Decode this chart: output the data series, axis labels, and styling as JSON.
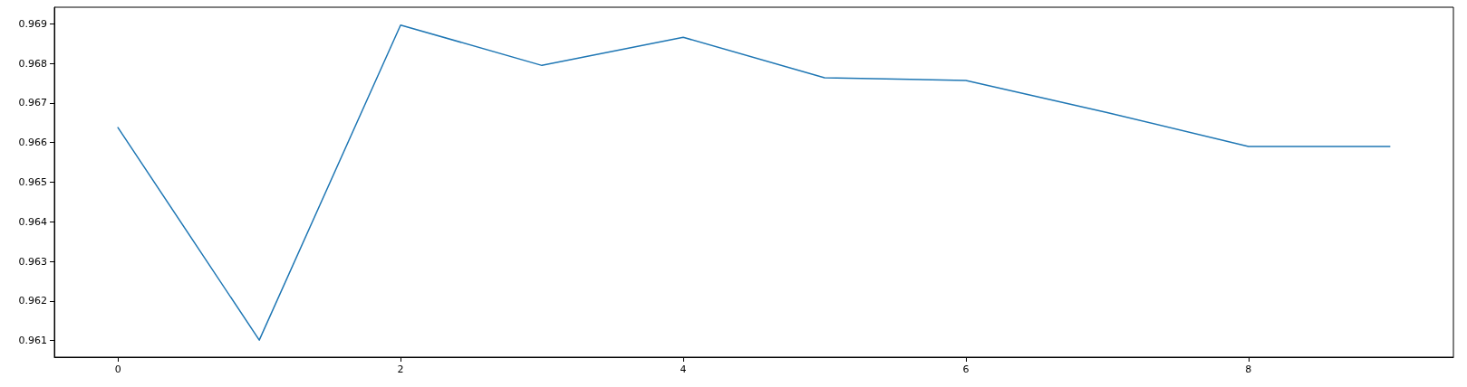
{
  "chart_data": {
    "type": "line",
    "x": [
      0,
      1,
      2,
      3,
      4,
      5,
      6,
      7,
      8,
      9
    ],
    "series": [
      {
        "color": "#1f77b4",
        "values": [
          0.96638,
          0.96101,
          0.96897,
          0.96795,
          0.96866,
          0.96764,
          0.96757,
          0.96676,
          0.9659,
          0.9659
        ]
      }
    ],
    "xlim": [
      -0.45,
      9.45
    ],
    "xticks": [
      0,
      2,
      4,
      6,
      8
    ],
    "ylim": [
      0.96058,
      0.96942
    ],
    "yticks": [
      0.961,
      0.962,
      0.963,
      0.964,
      0.965,
      0.966,
      0.967,
      0.968,
      0.969
    ],
    "grid": false,
    "marker": "none",
    "line_style": "solid"
  }
}
